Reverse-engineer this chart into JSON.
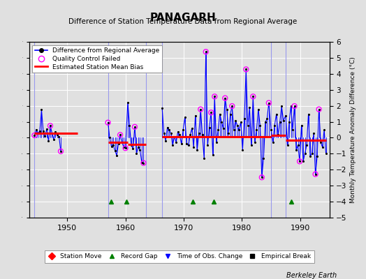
{
  "title": "PANAGARH",
  "subtitle": "Difference of Station Temperature Data from Regional Average",
  "ylabel": "Monthly Temperature Anomaly Difference (°C)",
  "ylim": [
    -5,
    6
  ],
  "xlim": [
    1943.5,
    1995
  ],
  "background_color": "#e0e0e0",
  "plot_bg_color": "#e0e0e0",
  "grid_color": "white",
  "bias_segments": [
    {
      "x_start": 1944.3,
      "x_end": 1951.8,
      "bias": 0.28
    },
    {
      "x_start": 1957.0,
      "x_end": 1960.4,
      "bias": -0.28
    },
    {
      "x_start": 1960.4,
      "x_end": 1963.5,
      "bias": -0.42
    },
    {
      "x_start": 1966.3,
      "x_end": 1985.0,
      "bias": 0.07
    },
    {
      "x_start": 1985.0,
      "x_end": 1987.5,
      "bias": 0.15
    },
    {
      "x_start": 1987.5,
      "x_end": 1994.5,
      "bias": -0.15
    }
  ],
  "vertical_lines": [
    1944.3,
    1957.0,
    1963.5,
    1966.3,
    1985.0,
    1987.5
  ],
  "record_gaps": [
    1957.5,
    1960.2,
    1971.5,
    1975.2,
    1988.5
  ],
  "data_points": [
    [
      1944.4,
      0.15
    ],
    [
      1944.7,
      0.5
    ],
    [
      1945.0,
      0.3
    ],
    [
      1945.3,
      0.4
    ],
    [
      1945.6,
      1.75
    ],
    [
      1945.9,
      0.4
    ],
    [
      1946.2,
      0.1
    ],
    [
      1946.5,
      0.55
    ],
    [
      1946.8,
      -0.2
    ],
    [
      1947.1,
      0.75
    ],
    [
      1947.4,
      0.3
    ],
    [
      1947.7,
      -0.1
    ],
    [
      1948.0,
      0.38
    ],
    [
      1948.3,
      0.18
    ],
    [
      1948.6,
      0.08
    ],
    [
      1948.9,
      -0.85
    ],
    [
      1957.0,
      0.95
    ],
    [
      1957.3,
      0.0
    ],
    [
      1957.6,
      -0.55
    ],
    [
      1957.9,
      -0.45
    ],
    [
      1958.2,
      -0.8
    ],
    [
      1958.5,
      -1.1
    ],
    [
      1958.8,
      -0.38
    ],
    [
      1959.1,
      0.18
    ],
    [
      1959.4,
      -0.3
    ],
    [
      1959.7,
      -0.58
    ],
    [
      1960.0,
      -0.65
    ],
    [
      1960.4,
      2.2
    ],
    [
      1960.7,
      0.78
    ],
    [
      1961.0,
      -0.48
    ],
    [
      1961.3,
      -0.68
    ],
    [
      1961.6,
      0.68
    ],
    [
      1961.9,
      -1.0
    ],
    [
      1962.2,
      -0.58
    ],
    [
      1962.5,
      -0.78
    ],
    [
      1962.8,
      -1.55
    ],
    [
      1963.1,
      -1.58
    ],
    [
      1966.3,
      1.85
    ],
    [
      1966.6,
      0.28
    ],
    [
      1966.9,
      -0.18
    ],
    [
      1967.2,
      0.65
    ],
    [
      1967.5,
      0.48
    ],
    [
      1967.8,
      0.28
    ],
    [
      1968.1,
      -0.48
    ],
    [
      1968.4,
      0.08
    ],
    [
      1968.7,
      -0.28
    ],
    [
      1969.0,
      0.38
    ],
    [
      1969.3,
      0.18
    ],
    [
      1969.6,
      -0.38
    ],
    [
      1969.9,
      0.48
    ],
    [
      1970.2,
      1.28
    ],
    [
      1970.5,
      -0.38
    ],
    [
      1970.8,
      -0.48
    ],
    [
      1971.1,
      0.18
    ],
    [
      1971.4,
      0.58
    ],
    [
      1971.7,
      -0.58
    ],
    [
      1972.0,
      1.38
    ],
    [
      1972.3,
      -0.78
    ],
    [
      1972.6,
      0.28
    ],
    [
      1972.9,
      1.78
    ],
    [
      1973.2,
      0.18
    ],
    [
      1973.5,
      -1.28
    ],
    [
      1973.8,
      5.38
    ],
    [
      1974.1,
      -0.48
    ],
    [
      1974.4,
      0.65
    ],
    [
      1974.7,
      1.58
    ],
    [
      1975.0,
      -1.08
    ],
    [
      1975.3,
      2.58
    ],
    [
      1975.6,
      -0.28
    ],
    [
      1975.9,
      0.48
    ],
    [
      1976.2,
      1.48
    ],
    [
      1976.5,
      0.98
    ],
    [
      1976.8,
      0.58
    ],
    [
      1977.1,
      2.48
    ],
    [
      1977.4,
      1.78
    ],
    [
      1977.7,
      0.28
    ],
    [
      1978.0,
      1.48
    ],
    [
      1978.3,
      1.98
    ],
    [
      1978.6,
      0.48
    ],
    [
      1978.9,
      1.08
    ],
    [
      1979.2,
      0.78
    ],
    [
      1979.5,
      0.48
    ],
    [
      1979.8,
      0.98
    ],
    [
      1980.1,
      -0.78
    ],
    [
      1980.4,
      1.18
    ],
    [
      1980.7,
      4.28
    ],
    [
      1981.0,
      0.78
    ],
    [
      1981.3,
      1.88
    ],
    [
      1981.6,
      -0.48
    ],
    [
      1981.9,
      2.58
    ],
    [
      1982.2,
      -0.28
    ],
    [
      1982.5,
      0.48
    ],
    [
      1982.8,
      1.78
    ],
    [
      1983.1,
      0.78
    ],
    [
      1983.4,
      -2.48
    ],
    [
      1983.7,
      -1.28
    ],
    [
      1984.0,
      0.98
    ],
    [
      1984.3,
      1.18
    ],
    [
      1984.6,
      2.18
    ],
    [
      1985.0,
      0.48
    ],
    [
      1985.3,
      -0.28
    ],
    [
      1985.6,
      0.78
    ],
    [
      1985.9,
      1.48
    ],
    [
      1986.2,
      0.18
    ],
    [
      1986.5,
      0.98
    ],
    [
      1986.8,
      1.98
    ],
    [
      1987.1,
      1.08
    ],
    [
      1987.5,
      1.38
    ],
    [
      1987.8,
      -0.48
    ],
    [
      1988.1,
      0.98
    ],
    [
      1988.4,
      1.98
    ],
    [
      1988.7,
      0.48
    ],
    [
      1989.0,
      1.98
    ],
    [
      1989.3,
      -0.78
    ],
    [
      1989.6,
      -0.48
    ],
    [
      1989.9,
      -1.48
    ],
    [
      1990.2,
      0.78
    ],
    [
      1990.5,
      -1.48
    ],
    [
      1990.8,
      -0.98
    ],
    [
      1991.1,
      -0.48
    ],
    [
      1991.4,
      1.48
    ],
    [
      1991.7,
      -1.18
    ],
    [
      1992.0,
      -0.98
    ],
    [
      1992.3,
      0.28
    ],
    [
      1992.6,
      -2.28
    ],
    [
      1992.9,
      -1.18
    ],
    [
      1993.2,
      1.78
    ],
    [
      1993.5,
      -0.28
    ],
    [
      1993.8,
      -0.58
    ],
    [
      1994.1,
      0.48
    ],
    [
      1994.4,
      -0.98
    ]
  ],
  "qc_failed_indices_approx": [
    [
      1944.4,
      0.15
    ],
    [
      1947.1,
      0.75
    ],
    [
      1948.9,
      -0.85
    ],
    [
      1957.0,
      0.95
    ],
    [
      1959.1,
      0.18
    ],
    [
      1960.0,
      -0.65
    ],
    [
      1961.6,
      0.68
    ],
    [
      1963.1,
      -1.58
    ],
    [
      1972.9,
      1.78
    ],
    [
      1973.8,
      5.38
    ],
    [
      1974.7,
      1.58
    ],
    [
      1975.3,
      2.58
    ],
    [
      1977.1,
      2.48
    ],
    [
      1978.3,
      1.98
    ],
    [
      1980.7,
      4.28
    ],
    [
      1981.9,
      2.58
    ],
    [
      1983.4,
      -2.48
    ],
    [
      1984.6,
      2.18
    ],
    [
      1989.0,
      1.98
    ],
    [
      1989.9,
      -1.48
    ],
    [
      1992.6,
      -2.28
    ],
    [
      1993.2,
      1.78
    ]
  ],
  "line_color": "blue",
  "dot_color": "black",
  "qc_color": "magenta",
  "bias_color": "red",
  "vline_color": "#9999ee"
}
